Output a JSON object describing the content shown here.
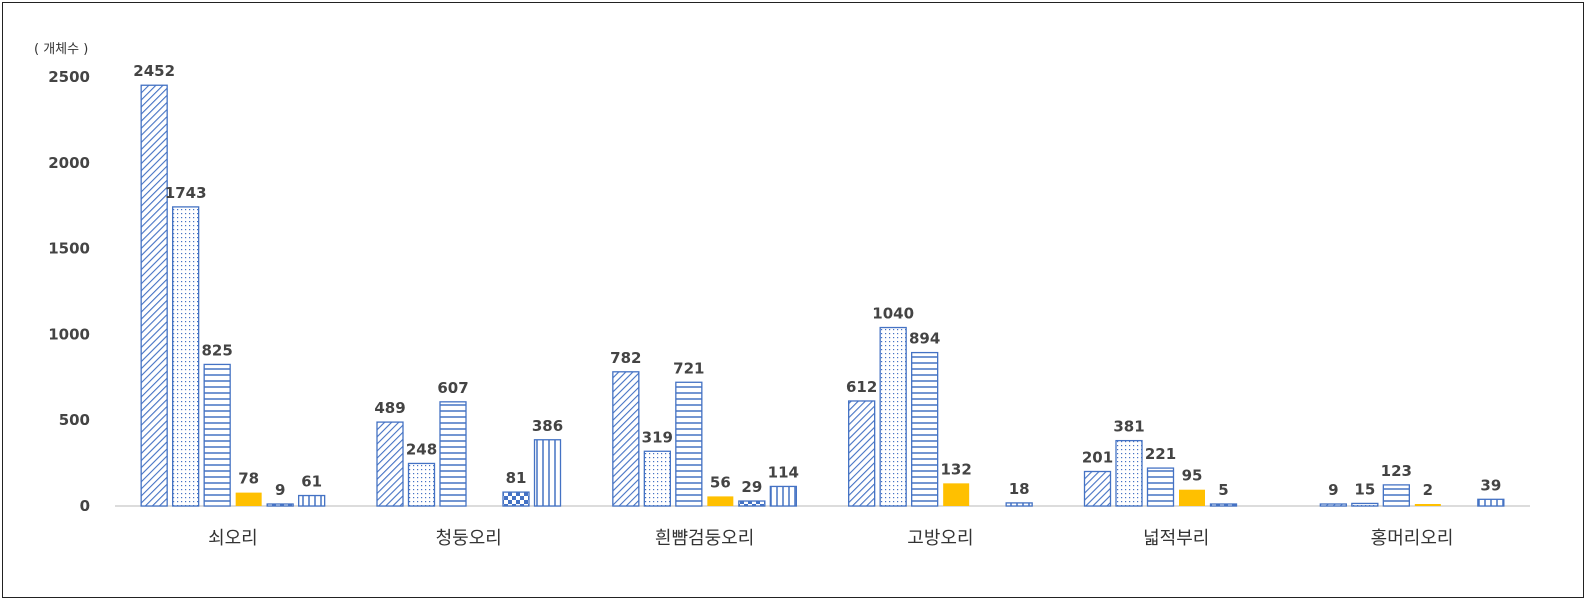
{
  "chart_data": {
    "type": "bar",
    "ylabel": "( 개체수 )",
    "ylim": [
      0,
      2500
    ],
    "yticks": [
      0,
      500,
      1000,
      1500,
      2000,
      2500
    ],
    "grid": false,
    "legend": "none",
    "categories": [
      "쇠오리",
      "청둥오리",
      "흰뺨검둥오리",
      "고방오리",
      "넓적부리",
      "홍머리오리"
    ],
    "series": [
      {
        "pattern": "diagonal-hatch",
        "color": "#4472C4",
        "values": [
          2452,
          489,
          782,
          612,
          201,
          9
        ]
      },
      {
        "pattern": "dots",
        "color": "#4472C4",
        "values": [
          1743,
          248,
          319,
          1040,
          381,
          15
        ]
      },
      {
        "pattern": "horizontal-lines",
        "color": "#4472C4",
        "values": [
          825,
          607,
          721,
          894,
          221,
          123
        ]
      },
      {
        "pattern": "solid",
        "color": "#FFC000",
        "values": [
          78,
          null,
          56,
          132,
          95,
          2
        ]
      },
      {
        "pattern": "checker",
        "color": "#4472C4",
        "values": [
          9,
          81,
          29,
          null,
          5,
          null
        ]
      },
      {
        "pattern": "vertical-lines",
        "color": "#4472C4",
        "values": [
          61,
          386,
          114,
          18,
          null,
          39
        ]
      }
    ]
  }
}
